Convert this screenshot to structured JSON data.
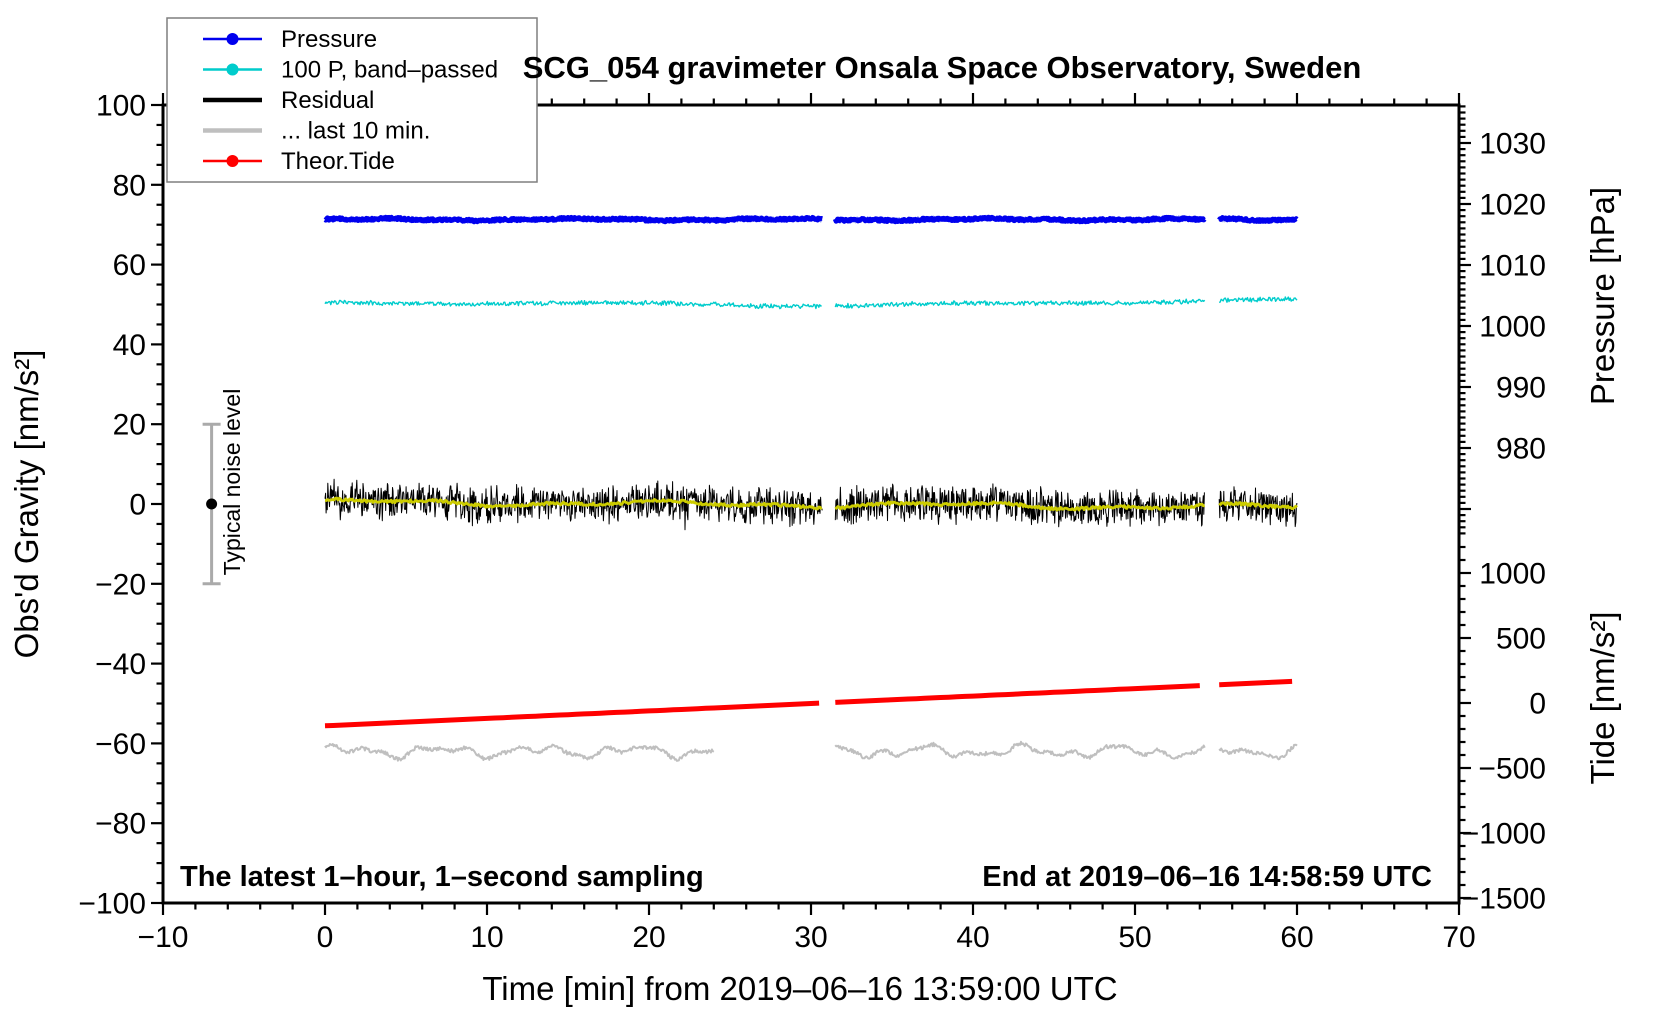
{
  "title": "SCG_054 gravimeter Onsala Space Observatory, Sweden",
  "background_color": "#FFFFFF",
  "annotations": {
    "bottom_left": "The latest 1–hour, 1–second sampling",
    "bottom_right": "End at 2019–06–16 14:58:59 UTC",
    "noise_label": "Typical noise level"
  },
  "legend": {
    "items": [
      {
        "label": "Pressure",
        "color": "#0000EE",
        "marker": "line-dot",
        "line_width": 2.5
      },
      {
        "label": "100 P, band–passed",
        "color": "#00CCCC",
        "marker": "line-dot",
        "line_width": 2.5
      },
      {
        "label": "Residual",
        "color": "#000000",
        "marker": "line",
        "line_width": 4.5
      },
      {
        "label": "... last 10 min.",
        "color": "#BFBFBF",
        "marker": "line",
        "line_width": 4.5
      },
      {
        "label": "Theor.Tide",
        "color": "#FF0000",
        "marker": "line-dot",
        "line_width": 2.5
      }
    ]
  },
  "axes": {
    "x": {
      "title": "Time [min] from 2019–06–16 13:59:00 UTC",
      "range": [
        -10,
        70
      ],
      "major": 10,
      "minor": 2,
      "tick_values": [
        -10,
        0,
        10,
        20,
        30,
        40,
        50,
        60,
        70
      ],
      "tick_labels": [
        "−10",
        "0",
        "10",
        "20",
        "30",
        "40",
        "50",
        "60",
        "70"
      ]
    },
    "y_left": {
      "title": "Obs'd Gravity [nm/s²]",
      "range": [
        -100,
        100
      ],
      "major": 20,
      "minor": 5,
      "tick_values": [
        100,
        80,
        60,
        40,
        20,
        0,
        -20,
        -40,
        -60,
        -80,
        -100
      ],
      "tick_labels": [
        "100",
        "80",
        "60",
        "40",
        "20",
        "0",
        "−20",
        "−40",
        "−60",
        "−80",
        "−100"
      ]
    },
    "y_right_pressure": {
      "title": "Pressure [hPa]",
      "major": 10,
      "minor": 1,
      "tick_values": [
        1030,
        1020,
        1010,
        1000,
        990,
        980
      ],
      "tick_labels": [
        "1030",
        "1020",
        "1010",
        "1000",
        "990",
        "980"
      ]
    },
    "y_right_tide": {
      "title": "Tide [nm/s²]",
      "major": 500,
      "minor": 100,
      "tick_values": [
        1000,
        500,
        0,
        -500,
        -1000,
        -1500
      ],
      "tick_labels": [
        "1000",
        "500",
        "0",
        "−500",
        "−1000",
        "−1500"
      ]
    }
  },
  "chart_data": {
    "type": "line",
    "title": "SCG_054 gravimeter Onsala Space Observatory, Sweden",
    "xlabel": "Time [min] from 2019–06–16 13:59:00 UTC",
    "ylabel": "Obs'd Gravity [nm/s²]",
    "x_data_span_min": [
      0,
      60
    ],
    "xlim": [
      -10,
      70
    ],
    "ylim_gravity": [
      -100,
      100
    ],
    "pressure_axis_visible_range_hPa": [
      980,
      1030
    ],
    "tide_axis_visible_range": [
      -1500,
      1000
    ],
    "data_gaps_min": [
      [
        30.7,
        31.5
      ],
      [
        54.3,
        55.2
      ]
    ],
    "grid": false,
    "legend_position": "top-left",
    "series": [
      {
        "name": "Pressure",
        "color": "#0000EE",
        "style": "thick noisy line",
        "gravity_level": 71.3,
        "approx_pressure_hPa": 1017,
        "noise_amplitude": 0.3,
        "seed": 11,
        "step_min": 0.05,
        "line_width": 5
      },
      {
        "name": "100 P, band–passed",
        "color": "#00CCCC",
        "style": "thin noisy line",
        "gravity_level": 49.9,
        "noise_amplitude": 0.5,
        "slow_variation_amplitude": 0.75,
        "slow_rise_per_min": 0.012,
        "seed": 23,
        "step_min": 0.06,
        "line_width": 1.4
      },
      {
        "name": "Residual",
        "color": "#000000",
        "style": "dense 1-second noise band",
        "gravity_level": 0,
        "noise_amplitude": 4.0,
        "seed": 37,
        "step_min": 0.035,
        "line_width": 1
      },
      {
        "name": "Residual smoothed (yellow overlay, not in legend)",
        "color": "#CCCC00",
        "style": "smooth line over residual",
        "gravity_level": 0,
        "noise_amplitude": 1.0,
        "drift_start": 0.5,
        "drift_per_min": -0.022,
        "seed": 51,
        "step_min": 0.08,
        "line_width": 2.8
      },
      {
        "name": "... last 10 min.",
        "color": "#BFBFBF",
        "style": "smooth wiggly line",
        "gravity_level": -62,
        "noise_amplitude": 1.9,
        "segments_min": [
          [
            0,
            24
          ],
          [
            31.5,
            60
          ]
        ],
        "seed": 67,
        "step_min": 0.06,
        "line_width": 2
      },
      {
        "name": "Theor.Tide",
        "color": "#FF0000",
        "style": "thick straight rising line",
        "linear_from_gravity": [
          0,
          -55.6
        ],
        "linear_to_gravity": [
          60,
          -44.4
        ],
        "approx_tide_from_nm_s2": -170,
        "approx_tide_to_nm_s2": 160,
        "seed": 73,
        "step_min": 0.5,
        "line_width": 5
      }
    ],
    "noise_bar": {
      "x_min": -7,
      "center_gravity": 0,
      "half_range_gravity": 20,
      "bar_color": "#AAAAAA",
      "dot_color": "#000000"
    }
  }
}
